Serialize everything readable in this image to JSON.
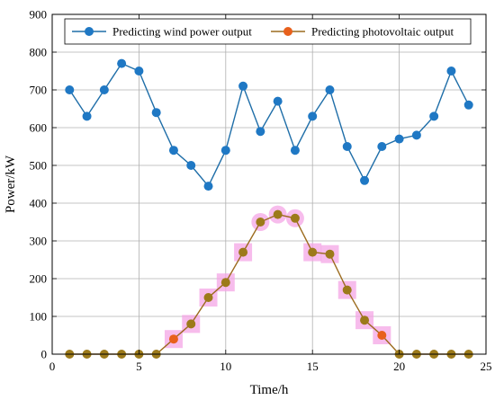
{
  "chart_data": {
    "type": "line",
    "xlabel": "Time/h",
    "ylabel": "Power/kW",
    "xlim": [
      0,
      25
    ],
    "ylim": [
      0,
      900
    ],
    "xticks": [
      0,
      5,
      10,
      15,
      20,
      25
    ],
    "yticks": [
      0,
      100,
      200,
      300,
      400,
      500,
      600,
      700,
      800,
      900
    ],
    "grid": true,
    "legend_position": "top",
    "x": [
      1,
      2,
      3,
      4,
      5,
      6,
      7,
      8,
      9,
      10,
      11,
      12,
      13,
      14,
      15,
      16,
      17,
      18,
      19,
      20,
      21,
      22,
      23,
      24
    ],
    "series": [
      {
        "name": "Predicting wind power output",
        "color": "#1f6ea8",
        "marker_color": "#1f78c4",
        "values": [
          700,
          630,
          700,
          770,
          750,
          640,
          540,
          500,
          445,
          540,
          710,
          590,
          670,
          540,
          630,
          700,
          550,
          460,
          550,
          570,
          580,
          630,
          750,
          660
        ]
      },
      {
        "name": "Predicting photovoltaic output",
        "color": "#9c6b1e",
        "marker_color": "#9c7a1a",
        "legend_marker_color": "#e8601c",
        "halo_color": "#f4a6e6",
        "values": [
          0,
          0,
          0,
          0,
          0,
          0,
          40,
          80,
          150,
          190,
          270,
          350,
          370,
          360,
          270,
          265,
          170,
          90,
          50,
          0,
          0,
          0,
          0,
          0
        ]
      }
    ]
  }
}
